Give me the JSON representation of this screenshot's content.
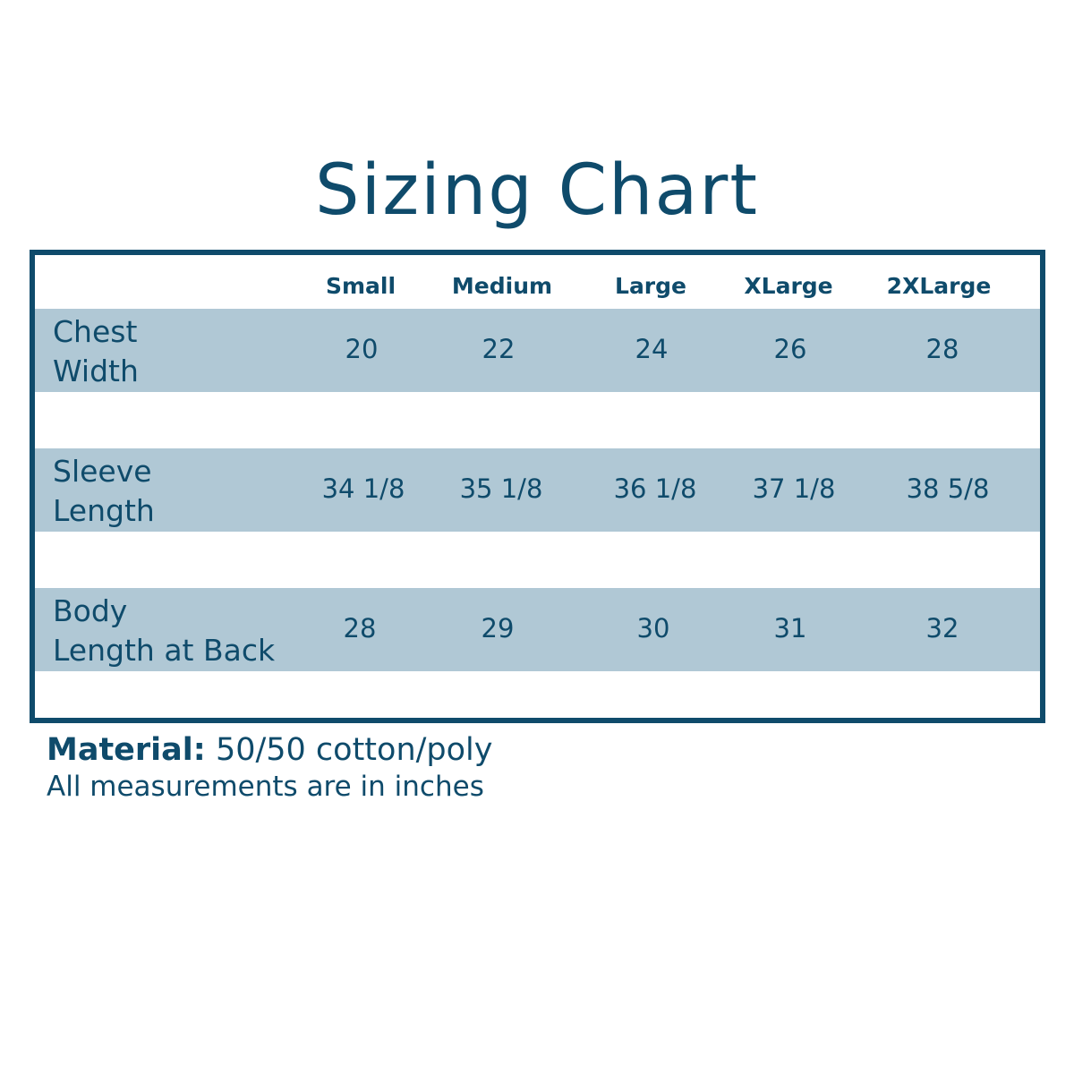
{
  "title": "Sizing Chart",
  "colors": {
    "primary": "#0f4b6b",
    "row_band": "#b0c8d5"
  },
  "table": {
    "columns": [
      "Small",
      "Medium",
      "Large",
      "XLarge",
      "2XLarge"
    ],
    "rows": [
      {
        "label_line1": "Chest",
        "label_line2": "Width",
        "values": [
          "20",
          "22",
          "24",
          "26",
          "28"
        ]
      },
      {
        "label_line1": "Sleeve",
        "label_line2": "Length",
        "values": [
          "34 1/8",
          "35 1/8",
          "36 1/8",
          "37 1/8",
          "38 5/8"
        ]
      },
      {
        "label_line1": "Body",
        "label_line2": "Length at Back",
        "values": [
          "28",
          "29",
          "30",
          "31",
          "32"
        ]
      }
    ]
  },
  "footer": {
    "material_label": "Material:",
    "material_value": "50/50 cotton/poly",
    "note": "All measurements are in inches"
  }
}
